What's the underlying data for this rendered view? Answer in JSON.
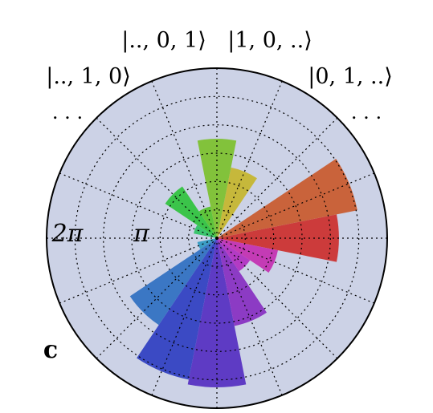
{
  "chart_data": {
    "type": "polar-bar",
    "panel_label": "c",
    "angular_labels": [
      {
        "text": "|.., 1, 0⟩"
      },
      {
        "text": "|.., 0, 1⟩"
      },
      {
        "text": "|1, 0, ..⟩"
      },
      {
        "text": "|0, 1, ..⟩"
      },
      {
        "text": ". . ."
      },
      {
        "text": ". . ."
      }
    ],
    "radial_tick_labels": [
      "π",
      "2π"
    ],
    "radial_max": 1.0,
    "grid": true,
    "n_sectors": 16,
    "bars": [
      {
        "theta_deg": 0,
        "r": 0.98,
        "color": "#cc3b3b"
      },
      {
        "theta_deg": 22.5,
        "r": 1.15,
        "color": "#c9633b"
      },
      {
        "theta_deg": 67.5,
        "r": 0.58,
        "color": "#c6b83b"
      },
      {
        "theta_deg": 90,
        "r": 0.8,
        "color": "#82c23b"
      },
      {
        "theta_deg": 112.5,
        "r": 0.26,
        "color": "#5fc43b"
      },
      {
        "theta_deg": 135,
        "r": 0.5,
        "color": "#3bc44a"
      },
      {
        "theta_deg": 157.5,
        "r": 0.19,
        "color": "#3bc46d"
      },
      {
        "theta_deg": 202.5,
        "r": 0.16,
        "color": "#3b9dc4"
      },
      {
        "theta_deg": 225,
        "r": 0.84,
        "color": "#3b77c4"
      },
      {
        "theta_deg": 247.5,
        "r": 1.16,
        "color": "#3b4ac4"
      },
      {
        "theta_deg": 270,
        "r": 1.2,
        "color": "#5e3bc4"
      },
      {
        "theta_deg": 292.5,
        "r": 0.72,
        "color": "#8c3bc4"
      },
      {
        "theta_deg": 315,
        "r": 0.32,
        "color": "#b33bc4"
      },
      {
        "theta_deg": 337.5,
        "r": 0.5,
        "color": "#c43bb5"
      }
    ],
    "colors": {
      "background": "#ccd2e6",
      "outline": "#000000",
      "grid": "#000000"
    }
  }
}
